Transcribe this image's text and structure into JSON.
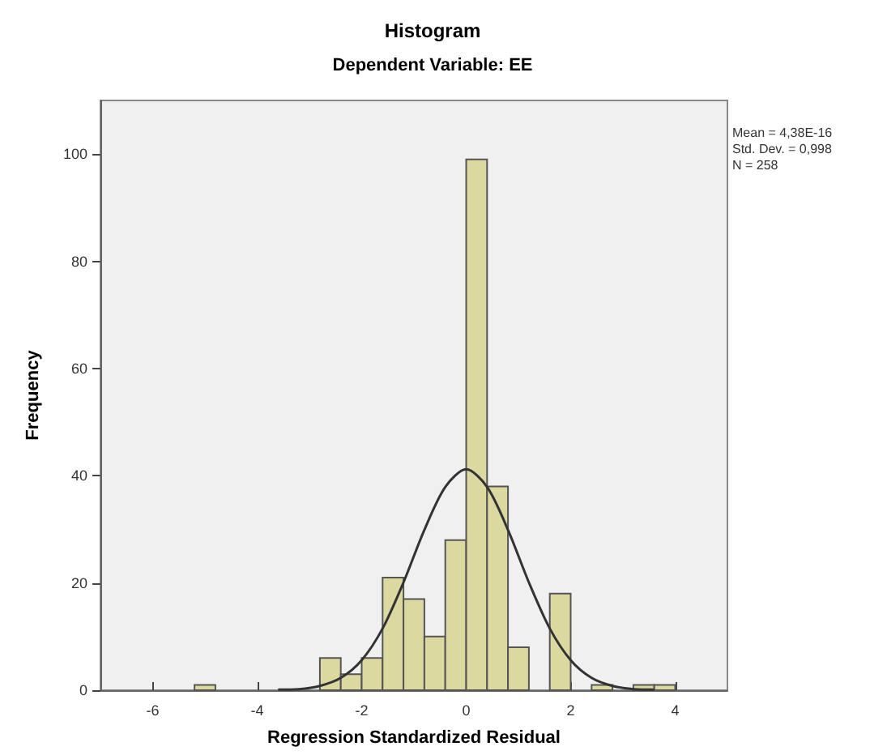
{
  "chart_data": {
    "type": "histogram",
    "title": "Histogram",
    "subtitle": "Dependent Variable: EE",
    "xlabel": "Regression Standardized Residual",
    "ylabel": "Frequency",
    "bins": [
      -5.2,
      -4.8,
      -4.4,
      -4.0,
      -3.6,
      -3.2,
      -2.8,
      -2.4,
      -2.0,
      -1.6,
      -1.2,
      -0.8,
      -0.4,
      0,
      0.4,
      0.8,
      1.2,
      1.6,
      2.0,
      2.4,
      2.8,
      3.2,
      3.6,
      4.0
    ],
    "values": [
      1,
      0,
      0,
      0,
      0,
      0,
      6,
      3,
      6,
      21,
      17,
      10,
      28,
      99,
      38,
      8,
      0,
      18,
      0,
      1,
      0,
      1,
      1
    ],
    "color": "#dcd9a0",
    "series": [
      {
        "type": "line",
        "color": "#333333",
        "x": [
          -3.6,
          -3.2,
          -2.8,
          -2.4,
          -2.0,
          -1.6,
          -1.2,
          -0.8,
          -0.4,
          0,
          0.4,
          0.8,
          1.2,
          1.6,
          2.0,
          2.4,
          2.8,
          3.2,
          3.6
        ],
        "values": [
          0.1,
          0.2,
          0.8,
          2.3,
          5.6,
          11.5,
          20.1,
          29.9,
          37.9,
          41.2,
          37.9,
          29.9,
          20.1,
          11.5,
          5.6,
          2.3,
          0.8,
          0.2,
          0.1
        ]
      }
    ],
    "annotations": [
      "Mean = 4,38E-16",
      "Std. Dev. = 0,998",
      "N = 258"
    ],
    "xlim": [
      -7,
      5
    ],
    "ylim": [
      0,
      110
    ],
    "xticks": [
      -6,
      -4,
      -2,
      0,
      2,
      4
    ],
    "yticks": [
      0,
      20,
      40,
      60,
      80,
      100
    ],
    "grid": false,
    "marker": "none",
    "line_style": "solid"
  }
}
